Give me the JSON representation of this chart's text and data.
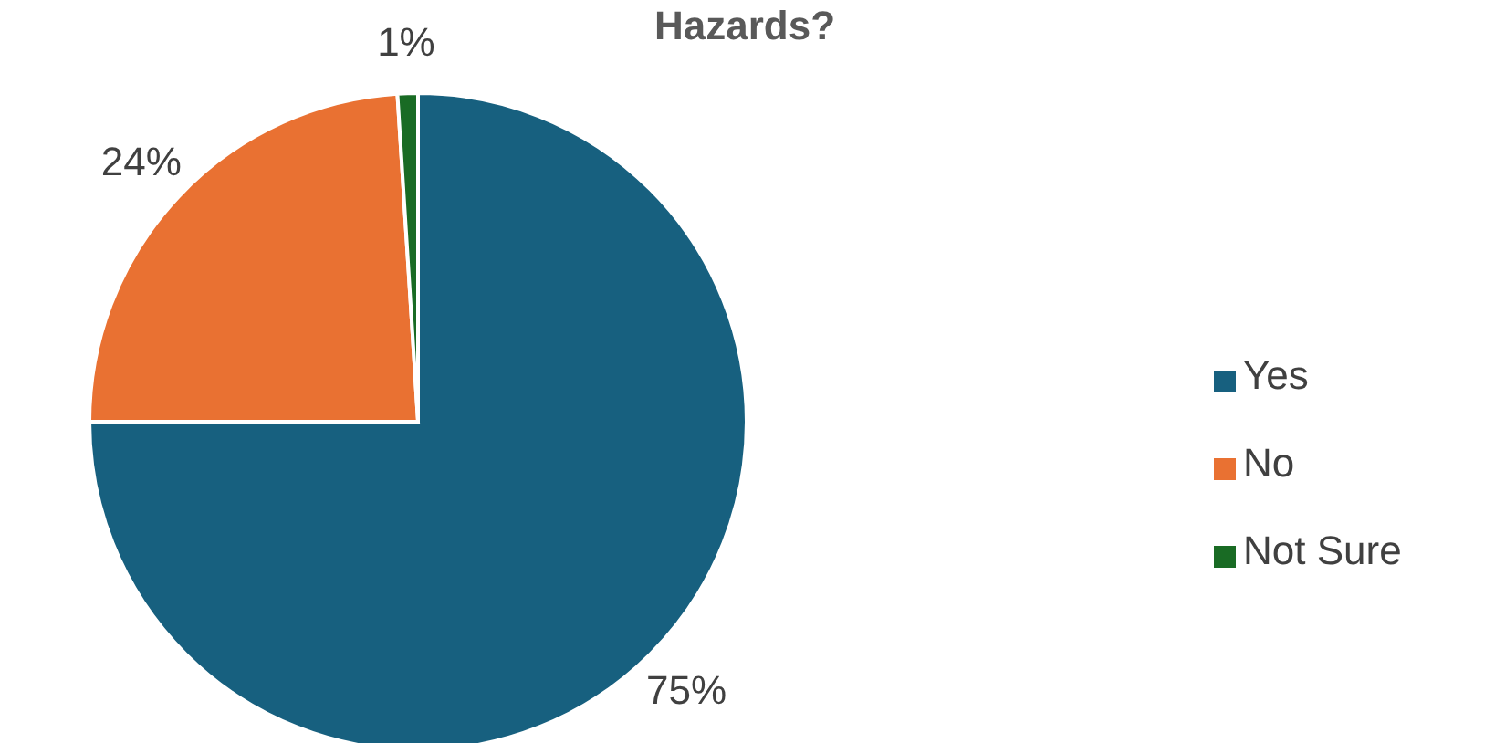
{
  "chart_data": {
    "type": "pie",
    "title": "Hazards?",
    "categories": [
      "Yes",
      "No",
      "Not Sure"
    ],
    "values": [
      75,
      24,
      1
    ],
    "colors": [
      "#17607f",
      "#e97132",
      "#196b24"
    ],
    "value_labels": [
      "75%",
      "24%",
      "1%"
    ],
    "legend": "right"
  }
}
